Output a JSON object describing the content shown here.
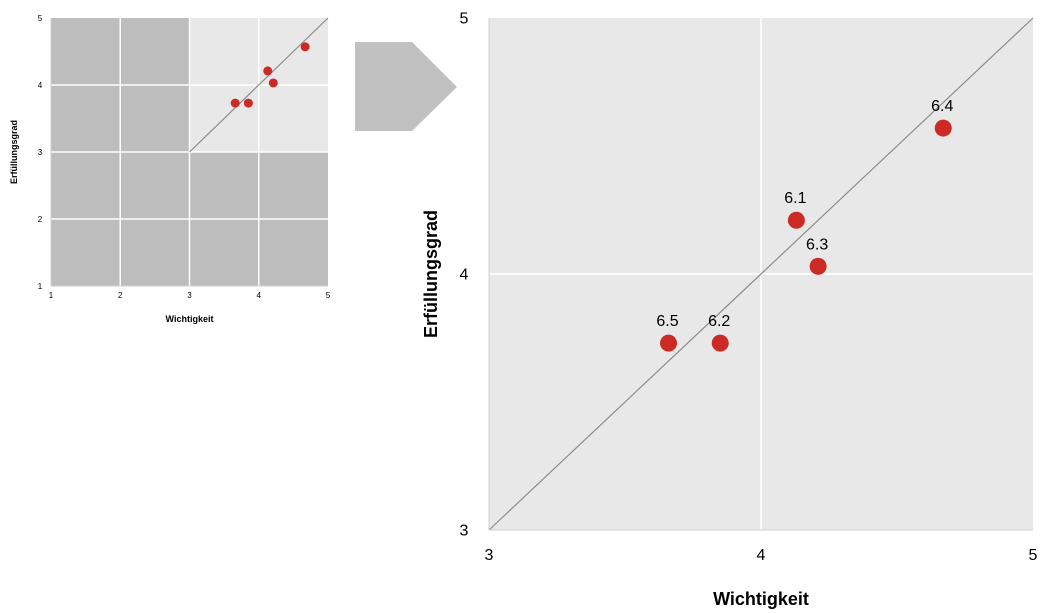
{
  "colors": {
    "point": "#cc2a24",
    "plot_bg": "#e8e8e8",
    "quadrant_shade": "#bdbdbd",
    "grid": "#ffffff",
    "diagonal": "#8c8c8c",
    "arrow": "#c1c1c1"
  },
  "chart_data": [
    {
      "type": "scatter",
      "role": "overview",
      "xlabel": "Wichtigkeit",
      "ylabel": "Erfüllungsgrad",
      "xlim": [
        1,
        5
      ],
      "ylim": [
        1,
        5
      ],
      "x_ticks": [
        1,
        2,
        3,
        4,
        5
      ],
      "y_ticks": [
        1,
        2,
        3,
        4,
        5
      ],
      "x_tick_labels": [
        "1",
        "2",
        "3",
        "4",
        "5"
      ],
      "y_tick_labels": [
        "1",
        "2",
        "3",
        "4",
        "5"
      ],
      "grid": true,
      "diagonal_line": true,
      "highlighted_region": {
        "x": [
          3,
          5
        ],
        "y": [
          3,
          5
        ]
      },
      "points": [
        {
          "x": 4.13,
          "y": 4.21
        },
        {
          "x": 3.85,
          "y": 3.73
        },
        {
          "x": 4.21,
          "y": 4.03
        },
        {
          "x": 4.67,
          "y": 4.57
        },
        {
          "x": 3.66,
          "y": 3.73
        }
      ]
    },
    {
      "type": "scatter",
      "role": "zoom",
      "xlabel": "Wichtigkeit",
      "ylabel": "Erfüllungsgrad",
      "xlim": [
        3,
        5
      ],
      "ylim": [
        3,
        5
      ],
      "x_ticks": [
        3,
        4,
        5
      ],
      "y_ticks": [
        3,
        4,
        5
      ],
      "x_tick_labels": [
        "3",
        "4",
        "5"
      ],
      "y_tick_labels": [
        "3",
        "4",
        "5"
      ],
      "grid": true,
      "diagonal_line": true,
      "points": [
        {
          "label": "6.1",
          "x": 4.13,
          "y": 4.21
        },
        {
          "label": "6.2",
          "x": 3.85,
          "y": 3.73
        },
        {
          "label": "6.3",
          "x": 4.21,
          "y": 4.03
        },
        {
          "label": "6.4",
          "x": 4.67,
          "y": 4.57
        },
        {
          "label": "6.5",
          "x": 3.66,
          "y": 3.73
        }
      ]
    }
  ]
}
